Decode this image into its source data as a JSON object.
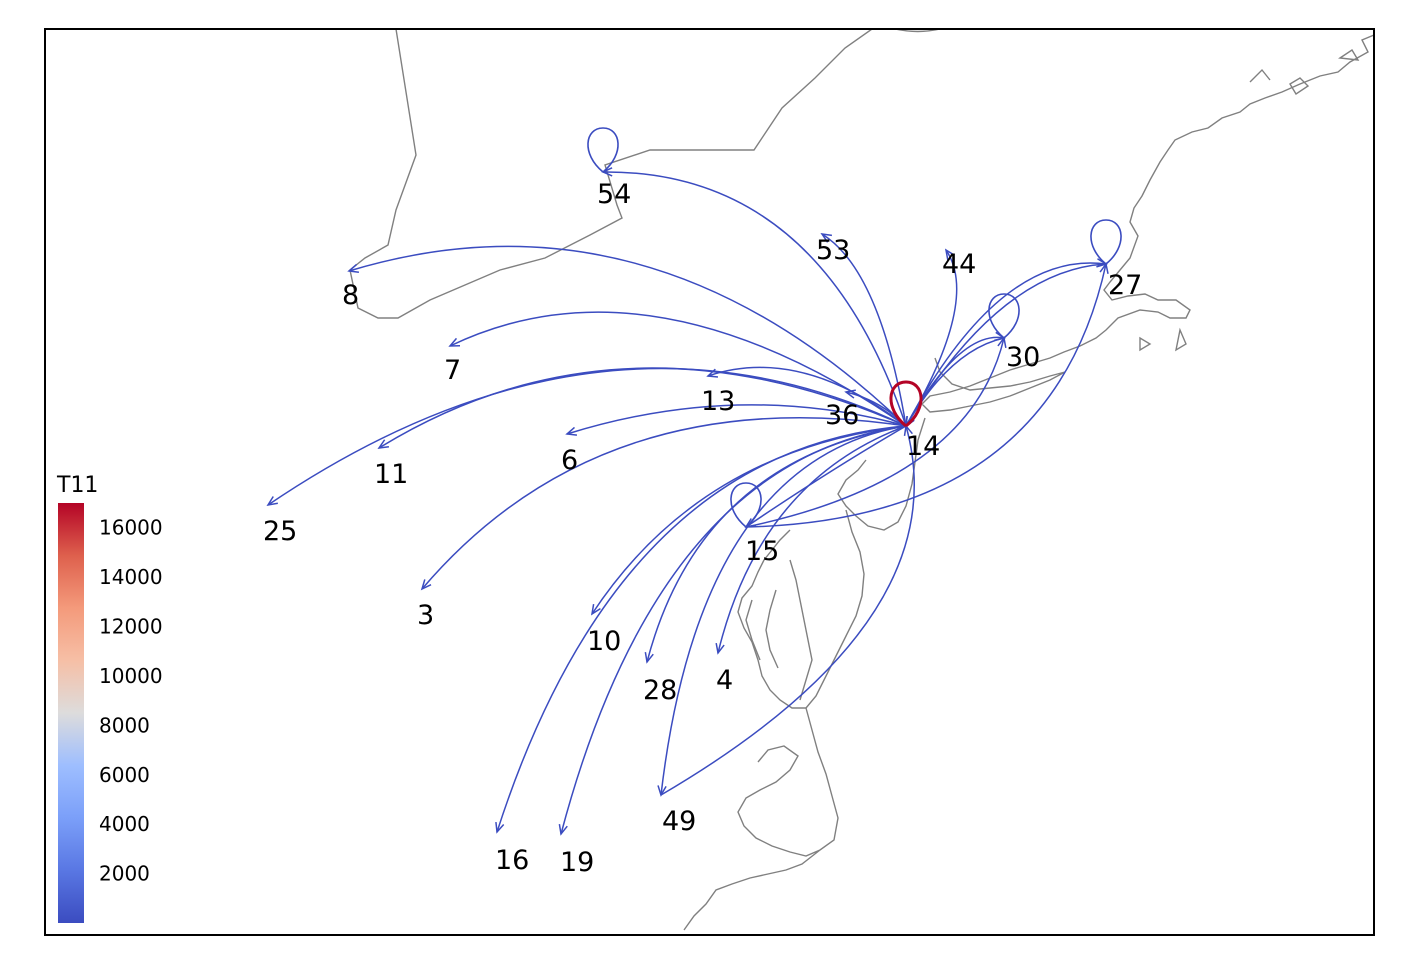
{
  "legend": {
    "title": "T11",
    "ticks": [
      "2000",
      "4000",
      "6000",
      "8000",
      "10000",
      "12000",
      "14000",
      "16000"
    ],
    "min": 0,
    "max": 17000
  },
  "colors": {
    "flow_low": "#3b4cc0",
    "flow_high": "#b40426",
    "coastline": "#808080",
    "frame": "#000000"
  },
  "hub": "14",
  "nodes": [
    "14",
    "54",
    "53",
    "44",
    "27",
    "30",
    "13",
    "36",
    "8",
    "7",
    "11",
    "6",
    "25",
    "15",
    "3",
    "10",
    "28",
    "4",
    "49",
    "16",
    "19"
  ],
  "self_loops": [
    {
      "node": "14",
      "value": 17000
    },
    {
      "node": "54",
      "value": 500
    },
    {
      "node": "27",
      "value": 500
    },
    {
      "node": "30",
      "value": 500
    },
    {
      "node": "15",
      "value": 500
    }
  ]
}
